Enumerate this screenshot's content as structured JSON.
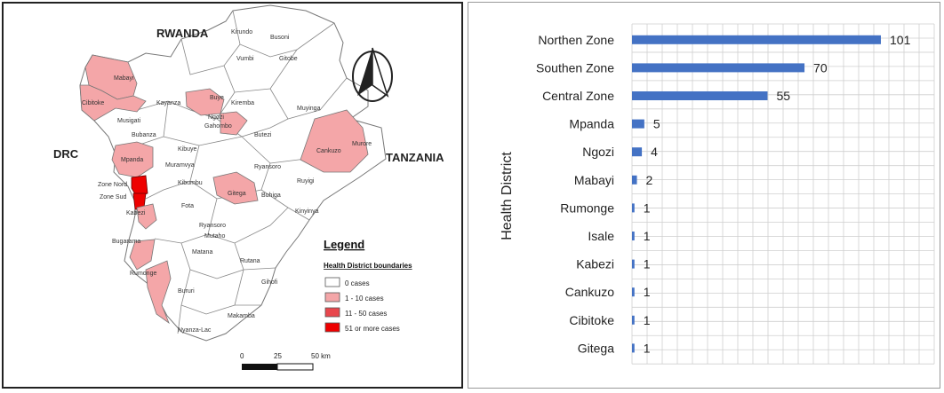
{
  "map": {
    "neighbors": {
      "rwanda": "RWANDA",
      "drc": "DRC",
      "tanzania": "TANZANIA"
    },
    "district_labels": {
      "kirundo": "Kirundo",
      "busoni": "Busoni",
      "vumbi": "Vumbi",
      "mabayi": "Mabayi",
      "gitobe": "Gitobe",
      "cibitoke": "Cibitoke",
      "kayanza": "Kayanza",
      "buye": "Buye",
      "kiremba": "Kiremba",
      "ngozi": "Ngozi",
      "gahombo": "Gahombo",
      "musigati": "Musigati",
      "bubanza": "Bubanza",
      "muyinga": "Muyinga",
      "mpanda": "Mpanda",
      "muramvya": "Muramvya",
      "kibuye": "Kibuye",
      "zone_nord": "Zone Nord",
      "zone_sud": "Zone Sud",
      "kibumbu": "Kibumbu",
      "kabezi": "Kabezi",
      "fota": "Fota",
      "gitega": "Gitega",
      "buhiga": "Buhiga",
      "cankuzo": "Cankuzo",
      "murore": "Murore",
      "ruyigi": "Ruyigi",
      "kinyinya": "Kinyinya",
      "ryansoro": "Ryansoro",
      "mutaho": "Mutaho",
      "bugarama": "Bugarama",
      "matana": "Matana",
      "rutana": "Rutana",
      "rumonge": "Rumonge",
      "gihofi": "Gihofi",
      "bururi": "Bururi",
      "makamba": "Makamba",
      "nyanza_lac": "Nyanza-Lac",
      "butezi": "Butezi"
    },
    "legend": {
      "title": "Legend",
      "subtitle": "Health District boundaries",
      "items": [
        {
          "label": "0 cases",
          "color": "#ffffff"
        },
        {
          "label": "1 - 10 cases",
          "color": "#f4a6a8"
        },
        {
          "label": "11 - 50 cases",
          "color": "#e8474d"
        },
        {
          "label": "51 or more cases",
          "color": "#ee0000"
        }
      ]
    },
    "scale": {
      "ticks": [
        "0",
        "25",
        "50 km"
      ]
    }
  },
  "chart_data": {
    "type": "bar",
    "orientation": "horizontal",
    "categories": [
      "Northen Zone",
      "Southen Zone",
      "Central Zone",
      "Mpanda",
      "Ngozi",
      "Mabayi",
      "Rumonge",
      "Isale",
      "Kabezi",
      "Cankuzo",
      "Cibitoke",
      "Gitega"
    ],
    "values": [
      101,
      70,
      55,
      5,
      4,
      2,
      1,
      1,
      1,
      1,
      1,
      1
    ],
    "xlim": [
      0,
      101
    ],
    "ylabel": "Health District",
    "bar_color": "#4472c4",
    "grid": true
  }
}
